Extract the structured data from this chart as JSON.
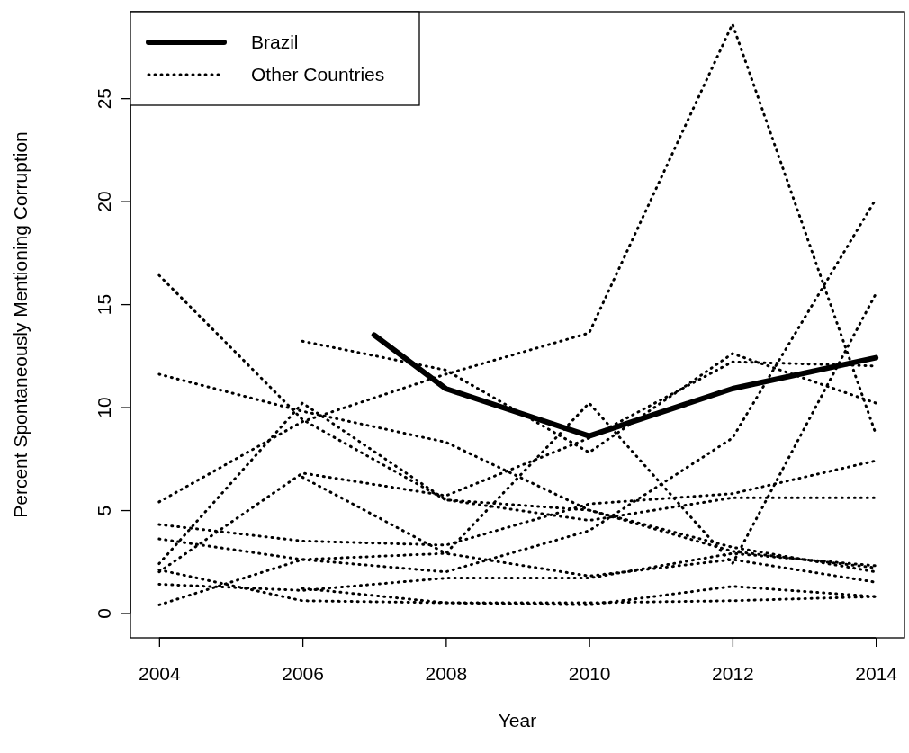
{
  "chart_data": {
    "type": "line",
    "xlabel": "Year",
    "ylabel": "Percent Spontaneously Mentioning Corruption",
    "xlim": [
      2003.6,
      2014.4
    ],
    "ylim": [
      -1.2,
      29.2
    ],
    "xticks": [
      2004,
      2006,
      2008,
      2010,
      2012,
      2014
    ],
    "yticks": [
      0,
      5,
      10,
      15,
      20,
      25
    ],
    "legend": "top left",
    "grid": false,
    "marker": "none",
    "series": [
      {
        "name": "Brazil",
        "color": "#000000",
        "line_style": "solid",
        "x": [
          2007,
          2008,
          2010,
          2012,
          2014
        ],
        "values": [
          13.5,
          10.9,
          8.6,
          10.9,
          12.4
        ]
      },
      {
        "name": "Other Countries",
        "color": "#000000",
        "line_style": "dotted",
        "x": [
          2004,
          2006,
          2008,
          2010,
          2012,
          2014
        ],
        "values": [
          16.4,
          9.4,
          5.5,
          5.0,
          3.0,
          2.2
        ]
      },
      {
        "color": "#000000",
        "line_style": "dotted",
        "x": [
          2004,
          2006,
          2008,
          2010,
          2012,
          2014
        ],
        "values": [
          11.6,
          9.8,
          8.3,
          5.0,
          3.2,
          2.0
        ]
      },
      {
        "color": "#000000",
        "line_style": "dotted",
        "x": [
          2004,
          2006,
          2008,
          2010,
          2012,
          2014
        ],
        "values": [
          5.4,
          9.3,
          11.6,
          13.6,
          28.6,
          8.7
        ]
      },
      {
        "color": "#000000",
        "line_style": "dotted",
        "x": [
          2006,
          2008,
          2010,
          2012,
          2014
        ],
        "values": [
          13.2,
          11.8,
          7.8,
          12.6,
          10.2
        ]
      },
      {
        "color": "#000000",
        "line_style": "dotted",
        "x": [
          2004,
          2006,
          2008,
          2010,
          2012,
          2014
        ],
        "values": [
          2.0,
          6.8,
          5.7,
          8.5,
          12.2,
          12.0
        ]
      },
      {
        "color": "#000000",
        "line_style": "dotted",
        "x": [
          2004,
          2006,
          2008,
          2010,
          2012,
          2014
        ],
        "values": [
          4.3,
          3.5,
          3.3,
          5.3,
          5.8,
          7.4
        ]
      },
      {
        "color": "#000000",
        "line_style": "dotted",
        "x": [
          2004,
          2006,
          2008,
          2010,
          2012,
          2014
        ],
        "values": [
          3.6,
          2.6,
          2.0,
          4.0,
          8.5,
          20.1
        ]
      },
      {
        "color": "#000000",
        "line_style": "dotted",
        "x": [
          2004,
          2006,
          2008,
          2010,
          2012,
          2014
        ],
        "values": [
          2.4,
          10.2,
          5.5,
          4.5,
          5.6,
          5.6
        ]
      },
      {
        "color": "#000000",
        "line_style": "dotted",
        "x": [
          2004,
          2006,
          2008,
          2010,
          2012,
          2014
        ],
        "values": [
          1.4,
          1.1,
          1.7,
          1.7,
          2.9,
          2.3
        ]
      },
      {
        "color": "#000000",
        "line_style": "dotted",
        "x": [
          2004,
          2006,
          2008,
          2010,
          2012,
          2014
        ],
        "values": [
          0.4,
          2.6,
          2.9,
          1.8,
          2.6,
          1.5
        ]
      },
      {
        "color": "#000000",
        "line_style": "dotted",
        "x": [
          2004,
          2006,
          2008,
          2010,
          2012,
          2014
        ],
        "values": [
          2.1,
          0.6,
          0.5,
          0.5,
          0.6,
          0.8
        ]
      },
      {
        "color": "#000000",
        "line_style": "dotted",
        "x": [
          2006,
          2008,
          2010,
          2012,
          2014
        ],
        "values": [
          6.6,
          2.9,
          10.2,
          2.4,
          15.5
        ]
      },
      {
        "color": "#000000",
        "line_style": "dotted",
        "x": [
          2006,
          2008,
          2010,
          2012,
          2014
        ],
        "values": [
          1.2,
          0.5,
          0.4,
          1.3,
          0.8
        ]
      }
    ]
  }
}
